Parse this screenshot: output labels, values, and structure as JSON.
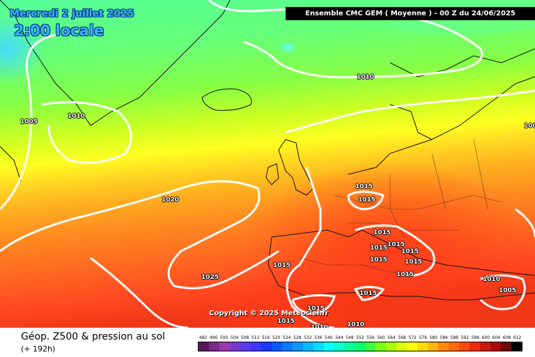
{
  "header": {
    "date": "Mercredi 2 juillet 2025",
    "time": "2:00 locale",
    "run": "Ensemble CMC GEM  ( Moyenne )  -  00 Z du 24/06/2025"
  },
  "copyright": "Copyright © 2025 Meteociel.fr",
  "isobar_labels": [
    "1005",
    "1010",
    "1010",
    "1020",
    "1025",
    "1015",
    "1015",
    "1015",
    "1015",
    "1015",
    "1015",
    "1015",
    "1015",
    "1015",
    "1015",
    "1015",
    "1015",
    "1015",
    "1010",
    "1005",
    "100",
    "1010",
    "1010"
  ],
  "footer": {
    "title": "Géop. Z500 & pression au sol",
    "subtitle": "(+ 192h)"
  },
  "scale": {
    "labels": [
      "492",
      "496",
      "500",
      "504",
      "508",
      "512",
      "516",
      "520",
      "524",
      "528",
      "532",
      "536",
      "540",
      "544",
      "548",
      "552",
      "556",
      "560",
      "564",
      "568",
      "572",
      "576",
      "580",
      "584",
      "588",
      "592",
      "596",
      "600",
      "604",
      "608",
      "612"
    ],
    "colors": [
      "#5a1a5a",
      "#7a2a8a",
      "#9a3aaa",
      "#7a3acc",
      "#5a3aee",
      "#3a3aff",
      "#1a3aff",
      "#0a5aff",
      "#0a7aff",
      "#0a9aff",
      "#0abaff",
      "#0adaff",
      "#0affff",
      "#0affcc",
      "#0aff9a",
      "#0aff6a",
      "#3aff3a",
      "#7aff1a",
      "#aaff0a",
      "#daff0a",
      "#ffff0a",
      "#ffda0a",
      "#ffb40a",
      "#ff8a0a",
      "#ff6a0a",
      "#ff4a0a",
      "#ee2a0a",
      "#cc1a0a",
      "#aa0a0a",
      "#6a0a0a",
      "#000000"
    ]
  },
  "colors": {
    "time_text": "#3bb0ff",
    "banner_bg": "#000000",
    "isobar": "#ffffff"
  }
}
